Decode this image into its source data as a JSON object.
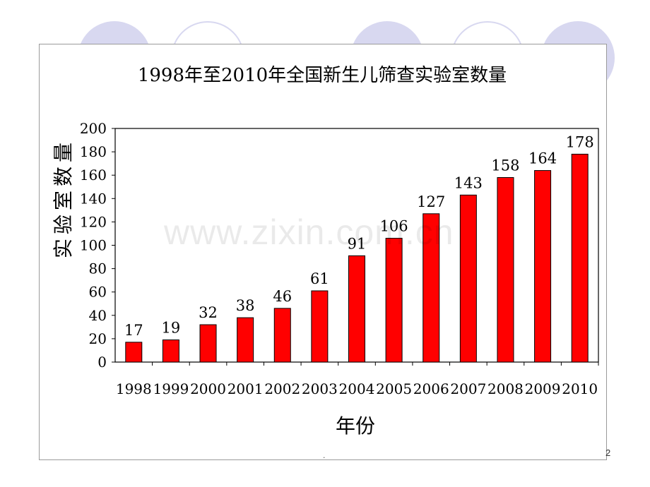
{
  "chart_data": {
    "type": "bar",
    "title": "1998年至2010年全国新生儿筛查实验室数量",
    "xlabel": "年份",
    "ylabel": "实验室数量",
    "categories": [
      "1998",
      "1999",
      "2000",
      "2001",
      "2002",
      "2003",
      "2004",
      "2005",
      "2006",
      "2007",
      "2008",
      "2009",
      "2010"
    ],
    "values": [
      17,
      19,
      32,
      38,
      46,
      61,
      91,
      106,
      127,
      143,
      158,
      164,
      178
    ],
    "ylim": [
      0,
      200
    ],
    "yticks": [
      0,
      20,
      40,
      60,
      80,
      100,
      120,
      140,
      160,
      180,
      200
    ],
    "grid": false,
    "legend": "none",
    "bar_color": "#ff0000",
    "bar_edge_color": "#000000"
  },
  "watermark": "www.zixin.com.cn",
  "footer": {
    "page_number": "2",
    "center_mark": "."
  }
}
